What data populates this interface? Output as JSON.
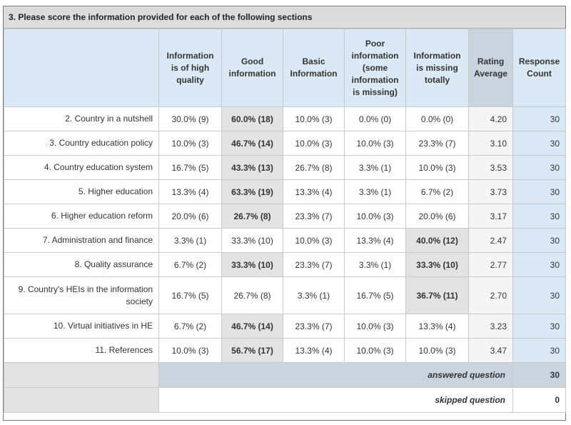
{
  "title": "3. Please score the information provided for each of the following sections",
  "headers": [
    "Information is of high quality",
    "Good information",
    "Basic Information",
    "Poor information (some information is missing)",
    "Information is missing totally",
    "Rating Average",
    "Response Count"
  ],
  "rows": [
    {
      "label": "2. Country in a nutshell",
      "c1": "30.0% (9)",
      "c2": "60.0% (18)",
      "c3": "10.0% (3)",
      "c4": "0.0% (0)",
      "c5": "0.0% (0)",
      "avg": "4.20",
      "count": "30"
    },
    {
      "label": "3. Country education policy",
      "c1": "10.0% (3)",
      "c2": "46.7% (14)",
      "c3": "10.0% (3)",
      "c4": "10.0% (3)",
      "c5": "23.3% (7)",
      "avg": "3.10",
      "count": "30"
    },
    {
      "label": "4. Country education system",
      "c1": "16.7% (5)",
      "c2": "43.3% (13)",
      "c3": "26.7% (8)",
      "c4": "3.3% (1)",
      "c5": "10.0% (3)",
      "avg": "3.53",
      "count": "30"
    },
    {
      "label": "5. Higher education",
      "c1": "13.3% (4)",
      "c2": "63.3% (19)",
      "c3": "13.3% (4)",
      "c4": "3.3% (1)",
      "c5": "6.7% (2)",
      "avg": "3.73",
      "count": "30"
    },
    {
      "label": "6. Higher education reform",
      "c1": "20.0% (6)",
      "c2": "26.7% (8)",
      "c3": "23.3% (7)",
      "c4": "10.0% (3)",
      "c5": "20.0% (6)",
      "avg": "3.17",
      "count": "30"
    },
    {
      "label": "7. Administration and finance",
      "c1": "3.3% (1)",
      "c2": "33.3% (10)",
      "c3": "10.0% (3)",
      "c4": "13.3% (4)",
      "c5": "40.0% (12)",
      "avg": "2.47",
      "count": "30"
    },
    {
      "label": "8. Quality assurance",
      "c1": "6.7% (2)",
      "c2": "33.3% (10)",
      "c3": "23.3% (7)",
      "c4": "3.3% (1)",
      "c5": "33.3% (10)",
      "avg": "2.77",
      "count": "30"
    },
    {
      "label": "9. Country's HEIs in the information society",
      "c1": "16.7% (5)",
      "c2": "26.7% (8)",
      "c3": "3.3% (1)",
      "c4": "16.7% (5)",
      "c5": "36.7% (11)",
      "avg": "2.70",
      "count": "30"
    },
    {
      "label": "10. Virtual initiatives in HE",
      "c1": "6.7% (2)",
      "c2": "46.7% (14)",
      "c3": "23.3% (7)",
      "c4": "10.0% (3)",
      "c5": "13.3% (4)",
      "avg": "3.23",
      "count": "30"
    },
    {
      "label": "11. References",
      "c1": "10.0% (3)",
      "c2": "56.7% (17)",
      "c3": "13.3% (4)",
      "c4": "10.0% (3)",
      "c5": "10.0% (3)",
      "avg": "3.47",
      "count": "30"
    }
  ],
  "footer": {
    "answered_label": "answered question",
    "answered_count": "30",
    "skipped_label": "skipped question",
    "skipped_count": "0"
  }
}
